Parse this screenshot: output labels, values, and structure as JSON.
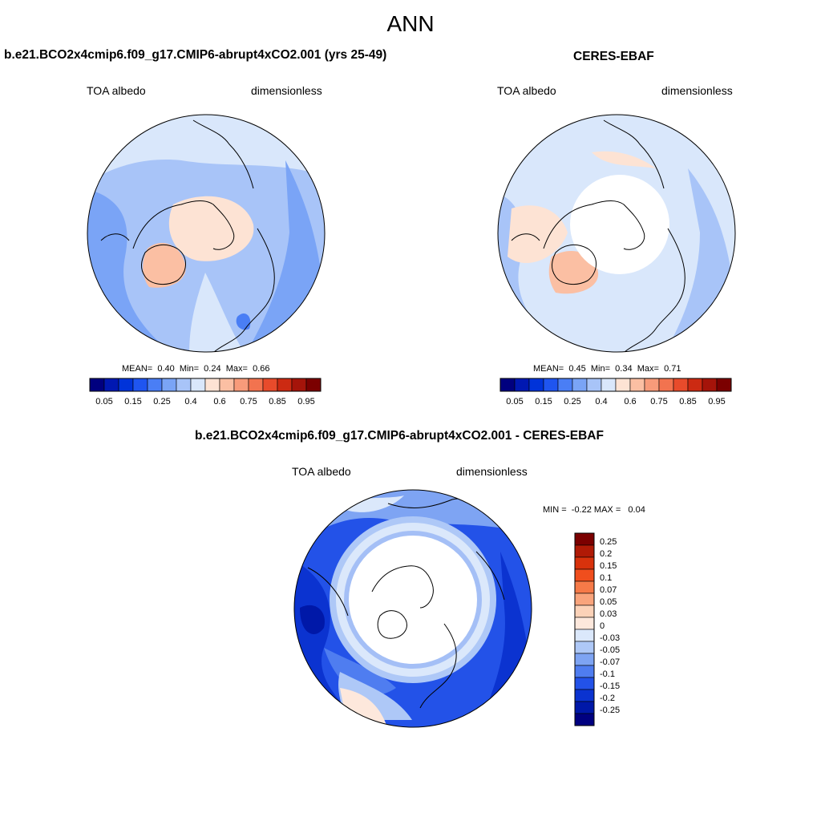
{
  "main_title": "ANN",
  "colors": {
    "full_scale": [
      "#00007f",
      "#0018b2",
      "#0033d9",
      "#1f55f0",
      "#4a7ef5",
      "#7aa4f6",
      "#a8c4f8",
      "#d9e7fb",
      "#fde3d4",
      "#fbbfa3",
      "#f89b7a",
      "#f2734f",
      "#e84b2b",
      "#cc2a12",
      "#a5140a",
      "#7b0000"
    ],
    "diff_scale": [
      "#7b0000",
      "#b01a06",
      "#d8320c",
      "#f04e1d",
      "#f67a48",
      "#f9a47c",
      "#fcd2b8",
      "#fde8dc",
      "#dbe8fb",
      "#aec8f7",
      "#7ea4f3",
      "#4f7df0",
      "#2352e8",
      "#0b33d0",
      "#0018a8",
      "#000080"
    ]
  },
  "panels": [
    {
      "id": "model",
      "title": "b.e21.BCO2x4cmip6.f09_g17.CMIP6-abrupt4xCO2.001 (yrs 25-49)",
      "left_label": "TOA albedo",
      "right_label": "dimensionless",
      "stats": {
        "mean_label": "MEAN=",
        "mean": "0.40",
        "min_label": "Min=",
        "min": "0.24",
        "max_label": "Max=",
        "max": "0.66"
      }
    },
    {
      "id": "obs",
      "title": "CERES-EBAF",
      "left_label": "TOA albedo",
      "right_label": "dimensionless",
      "stats": {
        "mean_label": "MEAN=",
        "mean": "0.45",
        "min_label": "Min=",
        "min": "0.34",
        "max_label": "Max=",
        "max": "0.71"
      }
    },
    {
      "id": "diff",
      "title": "b.e21.BCO2x4cmip6.f09_g17.CMIP6-abrupt4xCO2.001 - CERES-EBAF",
      "left_label": "TOA albedo",
      "right_label": "dimensionless",
      "stats": {
        "min_label": "MIN =",
        "min": "-0.22",
        "max_label": "MAX =",
        "max": "0.04"
      }
    }
  ],
  "chart_data": [
    {
      "type": "heatmap",
      "projection": "north polar stereographic",
      "title": "b.e21.BCO2x4cmip6.f09_g17.CMIP6-abrupt4xCO2.001 (yrs 25-49)",
      "variable": "TOA albedo",
      "units": "dimensionless",
      "mean": 0.4,
      "min": 0.24,
      "max": 0.66,
      "colorbar_ticks": [
        "0.05",
        "0.15",
        "0.25",
        "0.4",
        "0.6",
        "0.75",
        "0.85",
        "0.95"
      ],
      "levels": [
        0.05,
        0.1,
        0.15,
        0.2,
        0.25,
        0.3,
        0.35,
        0.4,
        0.5,
        0.6,
        0.7,
        0.75,
        0.8,
        0.85,
        0.9,
        0.95
      ]
    },
    {
      "type": "heatmap",
      "projection": "north polar stereographic",
      "title": "CERES-EBAF",
      "variable": "TOA albedo",
      "units": "dimensionless",
      "mean": 0.45,
      "min": 0.34,
      "max": 0.71,
      "colorbar_ticks": [
        "0.05",
        "0.15",
        "0.25",
        "0.4",
        "0.6",
        "0.75",
        "0.85",
        "0.95"
      ],
      "levels": [
        0.05,
        0.1,
        0.15,
        0.2,
        0.25,
        0.3,
        0.35,
        0.4,
        0.5,
        0.6,
        0.7,
        0.75,
        0.8,
        0.85,
        0.9,
        0.95
      ]
    },
    {
      "type": "heatmap",
      "projection": "north polar stereographic",
      "title": "b.e21.BCO2x4cmip6.f09_g17.CMIP6-abrupt4xCO2.001 - CERES-EBAF",
      "variable": "TOA albedo",
      "units": "dimensionless",
      "min": -0.22,
      "max": 0.04,
      "colorbar_ticks": [
        "0.25",
        "0.2",
        "0.15",
        "0.1",
        "0.07",
        "0.05",
        "0.03",
        "0",
        "-0.03",
        "-0.05",
        "-0.07",
        "-0.1",
        "-0.15",
        "-0.2",
        "-0.25"
      ]
    }
  ]
}
